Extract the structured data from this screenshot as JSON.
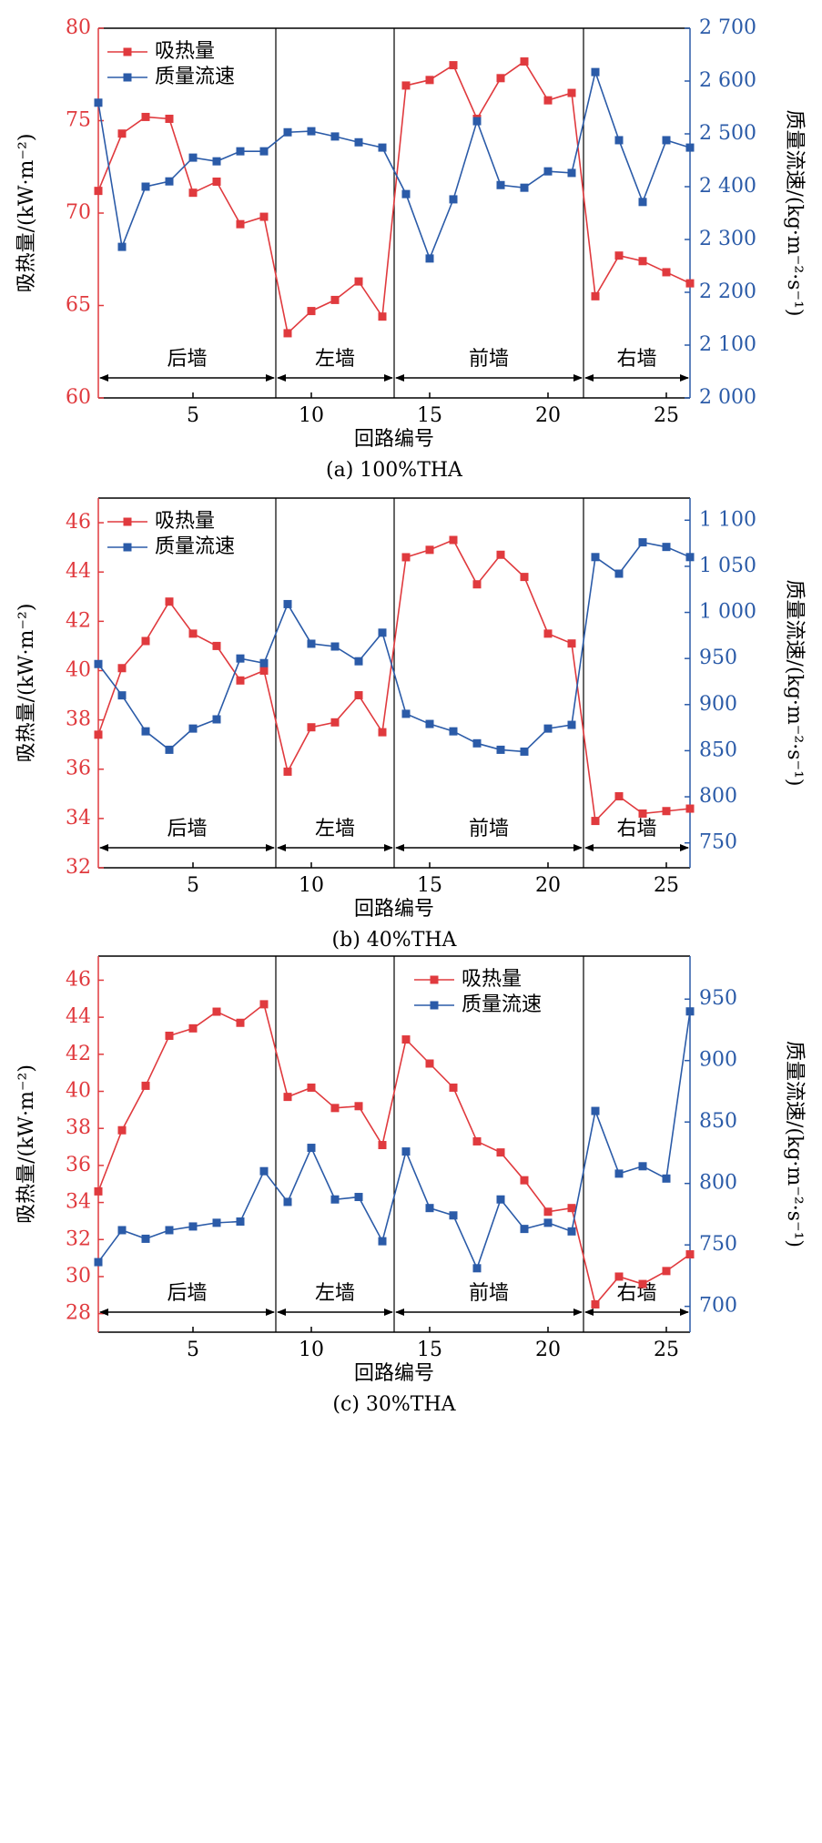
{
  "chart_data": [
    {
      "type": "line",
      "x_label": "回路编号",
      "caption": "(a) 100%THA",
      "y_label": "吸热量/(kW·m⁻²)",
      "y2_label": "质量流速/(kg·m⁻²·s⁻¹)",
      "x": [
        1,
        2,
        3,
        4,
        5,
        6,
        7,
        8,
        9,
        10,
        11,
        12,
        13,
        14,
        15,
        16,
        17,
        18,
        19,
        20,
        21,
        22,
        23,
        24,
        25,
        26
      ],
      "xlim": [
        1,
        26
      ],
      "xticks": [
        5,
        10,
        15,
        20,
        25
      ],
      "ylim": [
        60,
        80
      ],
      "yticks": [
        60,
        65,
        70,
        75,
        80
      ],
      "y_color": "#e03a3e",
      "y2lim": [
        2000,
        2700
      ],
      "y2ticks": [
        {
          "value": 2000,
          "label": "2 000"
        },
        {
          "value": 2100,
          "label": "2 100"
        },
        {
          "value": 2200,
          "label": "2 200"
        },
        {
          "value": 2300,
          "label": "2 300"
        },
        {
          "value": 2400,
          "label": "2 400"
        },
        {
          "value": 2500,
          "label": "2 500"
        },
        {
          "value": 2600,
          "label": "2 600"
        },
        {
          "value": 2700,
          "label": "2 700"
        }
      ],
      "y2_color": "#2b5ba8",
      "legend": "upper left",
      "regions": [
        {
          "label": "后墙",
          "start": 1,
          "end": 8.5
        },
        {
          "label": "左墙",
          "start": 8.5,
          "end": 13.5
        },
        {
          "label": "前墙",
          "start": 13.5,
          "end": 21.5
        },
        {
          "label": "右墙",
          "start": 21.5,
          "end": 26
        }
      ],
      "series": [
        {
          "name": "吸热量",
          "color": "#e03a3e",
          "values": [
            71.2,
            74.3,
            75.2,
            75.1,
            71.1,
            71.7,
            69.4,
            69.8,
            63.5,
            64.7,
            65.3,
            66.3,
            64.4,
            76.9,
            77.2,
            78.0,
            75.1,
            77.3,
            78.2,
            76.1,
            76.5,
            65.5,
            67.7,
            67.4,
            66.8,
            66.2
          ]
        },
        {
          "name": "质量流速",
          "color": "#2b5ba8",
          "axis": "y2",
          "values": [
            2559,
            2286,
            2400,
            2410,
            2455,
            2448,
            2467,
            2467,
            2503,
            2505,
            2495,
            2484,
            2474,
            2386,
            2264,
            2376,
            2524,
            2403,
            2398,
            2429,
            2426,
            2617,
            2488,
            2371,
            2488,
            2474
          ]
        }
      ]
    },
    {
      "type": "line",
      "x_label": "回路编号",
      "caption": "(b) 40%THA",
      "y_label": "吸热量/(kW·m⁻²)",
      "y2_label": "质量流速/(kg·m⁻²·s⁻¹)",
      "x": [
        1,
        2,
        3,
        4,
        5,
        6,
        7,
        8,
        9,
        10,
        11,
        12,
        13,
        14,
        15,
        16,
        17,
        18,
        19,
        20,
        21,
        22,
        23,
        24,
        25,
        26
      ],
      "xlim": [
        1,
        26
      ],
      "xticks": [
        5,
        10,
        15,
        20,
        25
      ],
      "ylim": [
        32,
        47
      ],
      "yticks": [
        32,
        34,
        36,
        38,
        40,
        42,
        44,
        46
      ],
      "y_color": "#e03a3e",
      "y2lim": [
        723,
        1124
      ],
      "y2ticks": [
        750,
        800,
        850,
        900,
        950,
        {
          "value": 1000,
          "label": "1 000"
        },
        {
          "value": 1050,
          "label": "1 050"
        },
        {
          "value": 1100,
          "label": "1 100"
        }
      ],
      "y2_color": "#2b5ba8",
      "legend": "upper left",
      "regions": [
        {
          "label": "后墙",
          "start": 1,
          "end": 8.5
        },
        {
          "label": "左墙",
          "start": 8.5,
          "end": 13.5
        },
        {
          "label": "前墙",
          "start": 13.5,
          "end": 21.5
        },
        {
          "label": "右墙",
          "start": 21.5,
          "end": 26
        }
      ],
      "series": [
        {
          "name": "吸热量",
          "color": "#e03a3e",
          "values": [
            37.4,
            40.1,
            41.2,
            42.8,
            41.5,
            41.0,
            39.6,
            40.0,
            35.9,
            37.7,
            37.9,
            39.0,
            37.5,
            44.6,
            44.9,
            45.3,
            43.5,
            44.7,
            43.8,
            41.5,
            41.1,
            33.9,
            34.9,
            34.2,
            34.3,
            34.4
          ]
        },
        {
          "name": "质量流速",
          "color": "#2b5ba8",
          "axis": "y2",
          "values": [
            944,
            910,
            871,
            851,
            874,
            884,
            950,
            945,
            1009,
            966,
            963,
            947,
            978,
            890,
            879,
            871,
            858,
            851,
            849,
            874,
            878,
            1060,
            1042,
            1076,
            1071,
            1060
          ]
        }
      ]
    },
    {
      "type": "line",
      "x_label": "回路编号",
      "caption": "(c) 30%THA",
      "y_label": "吸热量/(kW·m⁻²)",
      "y2_label": "质量流速/(kg·m⁻²·s⁻¹)",
      "x": [
        1,
        2,
        3,
        4,
        5,
        6,
        7,
        8,
        9,
        10,
        11,
        12,
        13,
        14,
        15,
        16,
        17,
        18,
        19,
        20,
        21,
        22,
        23,
        24,
        25,
        26
      ],
      "xlim": [
        1,
        26
      ],
      "xticks": [
        5,
        10,
        15,
        20,
        25
      ],
      "ylim": [
        27,
        47.3
      ],
      "yticks": [
        28,
        30,
        32,
        34,
        36,
        38,
        40,
        42,
        44,
        46
      ],
      "y_color": "#e03a3e",
      "y2lim": [
        679,
        985
      ],
      "y2ticks": [
        700,
        750,
        800,
        850,
        900,
        950
      ],
      "y2_color": "#2b5ba8",
      "legend": "upper center",
      "regions": [
        {
          "label": "后墙",
          "start": 1,
          "end": 8.5
        },
        {
          "label": "左墙",
          "start": 8.5,
          "end": 13.5
        },
        {
          "label": "前墙",
          "start": 13.5,
          "end": 21.5
        },
        {
          "label": "右墙",
          "start": 21.5,
          "end": 26
        }
      ],
      "series": [
        {
          "name": "吸热量",
          "color": "#e03a3e",
          "values": [
            34.6,
            37.9,
            40.3,
            43.0,
            43.4,
            44.3,
            43.7,
            44.7,
            39.7,
            40.2,
            39.1,
            39.2,
            37.1,
            42.8,
            41.5,
            40.2,
            37.3,
            36.7,
            35.2,
            33.5,
            33.7,
            28.5,
            30.0,
            29.6,
            30.3,
            31.2
          ]
        },
        {
          "name": "质量流速",
          "color": "#2b5ba8",
          "axis": "y2",
          "values": [
            736,
            762,
            755,
            762,
            765,
            768,
            769,
            810,
            785,
            829,
            787,
            789,
            753,
            826,
            780,
            774,
            731,
            787,
            763,
            768,
            761,
            859,
            808,
            814,
            804,
            940
          ]
        }
      ]
    }
  ]
}
